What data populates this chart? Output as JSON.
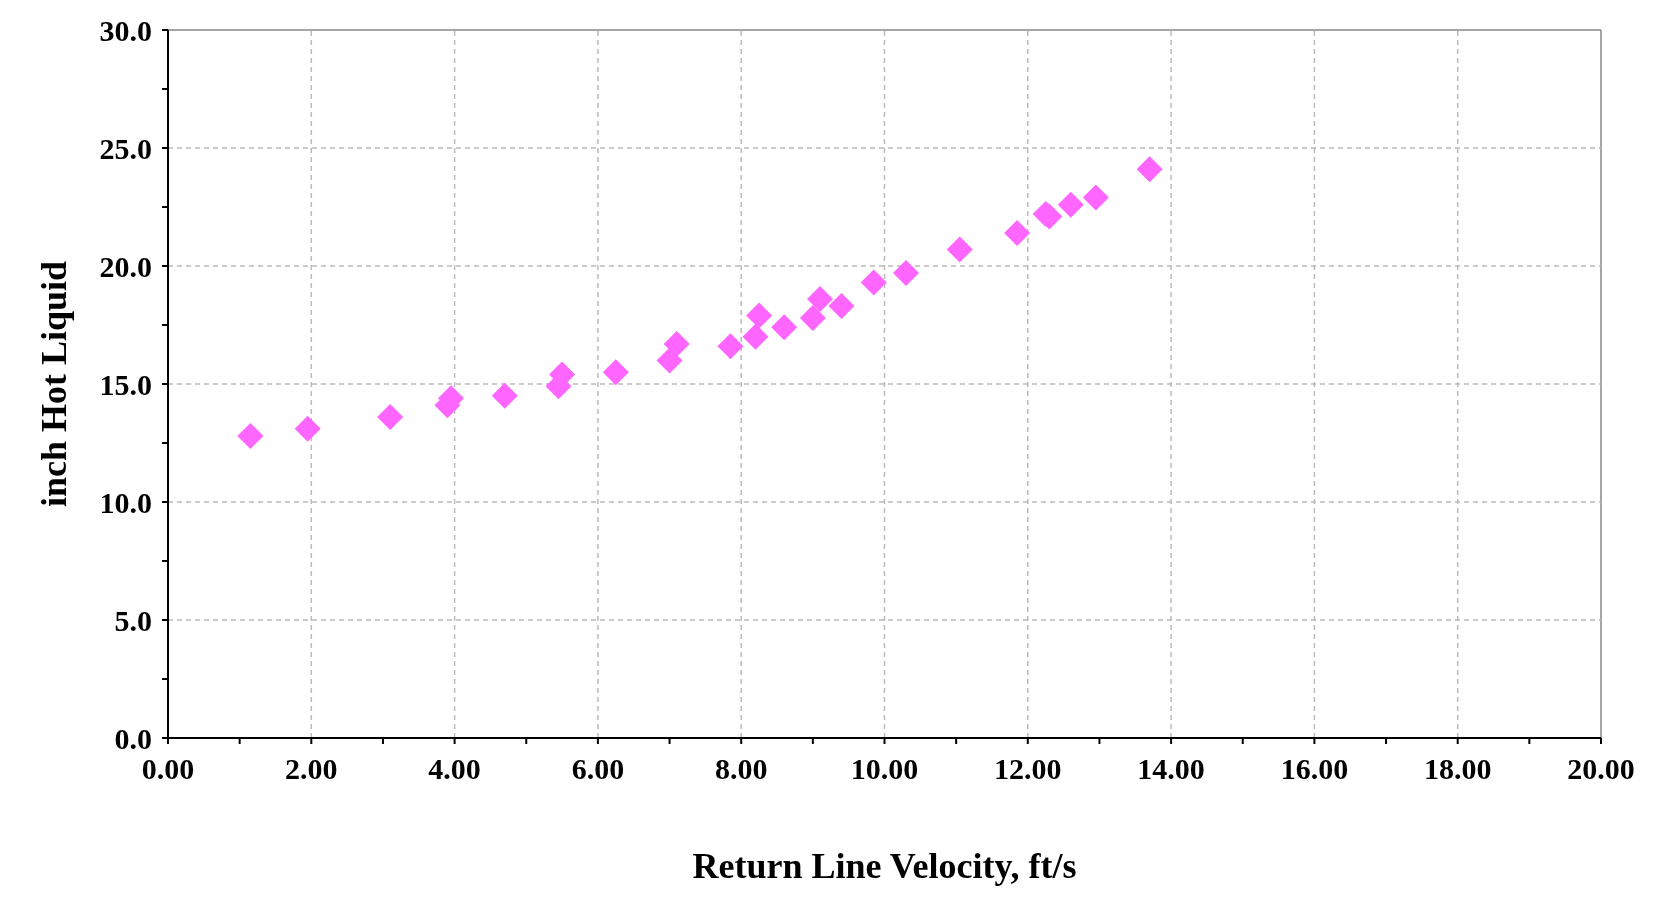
{
  "chart_data": {
    "type": "scatter",
    "xlabel": "Return Line Velocity,  ft/s",
    "ylabel": "inch Hot Liquid",
    "x": [
      1.15,
      1.95,
      3.1,
      3.9,
      3.95,
      4.7,
      5.45,
      5.5,
      6.25,
      7.0,
      7.1,
      7.85,
      8.2,
      8.25,
      8.6,
      9.0,
      9.1,
      9.4,
      9.85,
      10.3,
      11.05,
      11.85,
      12.25,
      12.3,
      12.6,
      12.95,
      13.7
    ],
    "series": [
      {
        "color": "#ff66ff",
        "values": [
          12.8,
          13.1,
          13.6,
          14.1,
          14.4,
          14.5,
          14.9,
          15.4,
          15.5,
          16.0,
          16.7,
          16.6,
          17.0,
          17.9,
          17.4,
          17.8,
          18.6,
          18.3,
          19.3,
          19.7,
          20.7,
          21.4,
          22.2,
          22.1,
          22.6,
          22.9,
          24.1
        ]
      }
    ],
    "marker": "diamond",
    "grid": true,
    "legend": false,
    "xlim": [
      0,
      20
    ],
    "xticks": [
      {
        "value": 0,
        "label": "0.00"
      },
      {
        "value": 1,
        "label": null
      },
      {
        "value": 2,
        "label": "2.00"
      },
      {
        "value": 3,
        "label": null
      },
      {
        "value": 4,
        "label": "4.00"
      },
      {
        "value": 5,
        "label": null
      },
      {
        "value": 6,
        "label": "6.00"
      },
      {
        "value": 7,
        "label": null
      },
      {
        "value": 8,
        "label": "8.00"
      },
      {
        "value": 9,
        "label": null
      },
      {
        "value": 10,
        "label": "10.00"
      },
      {
        "value": 11,
        "label": null
      },
      {
        "value": 12,
        "label": "12.00"
      },
      {
        "value": 13,
        "label": null
      },
      {
        "value": 14,
        "label": "14.00"
      },
      {
        "value": 15,
        "label": null
      },
      {
        "value": 16,
        "label": "16.00"
      },
      {
        "value": 17,
        "label": null
      },
      {
        "value": 18,
        "label": "18.00"
      },
      {
        "value": 19,
        "label": null
      },
      {
        "value": 20,
        "label": "20.00"
      }
    ],
    "ylim": [
      0,
      30
    ],
    "yticks": [
      {
        "value": 0,
        "label": "0.0"
      },
      {
        "value": 2.5,
        "label": null
      },
      {
        "value": 5,
        "label": "5.0"
      },
      {
        "value": 7.5,
        "label": null
      },
      {
        "value": 10,
        "label": "10.0"
      },
      {
        "value": 12.5,
        "label": null
      },
      {
        "value": 15,
        "label": "15.0"
      },
      {
        "value": 17.5,
        "label": null
      },
      {
        "value": 20,
        "label": "20.0"
      },
      {
        "value": 22.5,
        "label": null
      },
      {
        "value": 25,
        "label": "25.0"
      },
      {
        "value": 27.5,
        "label": null
      },
      {
        "value": 30,
        "label": "30.0"
      }
    ]
  }
}
